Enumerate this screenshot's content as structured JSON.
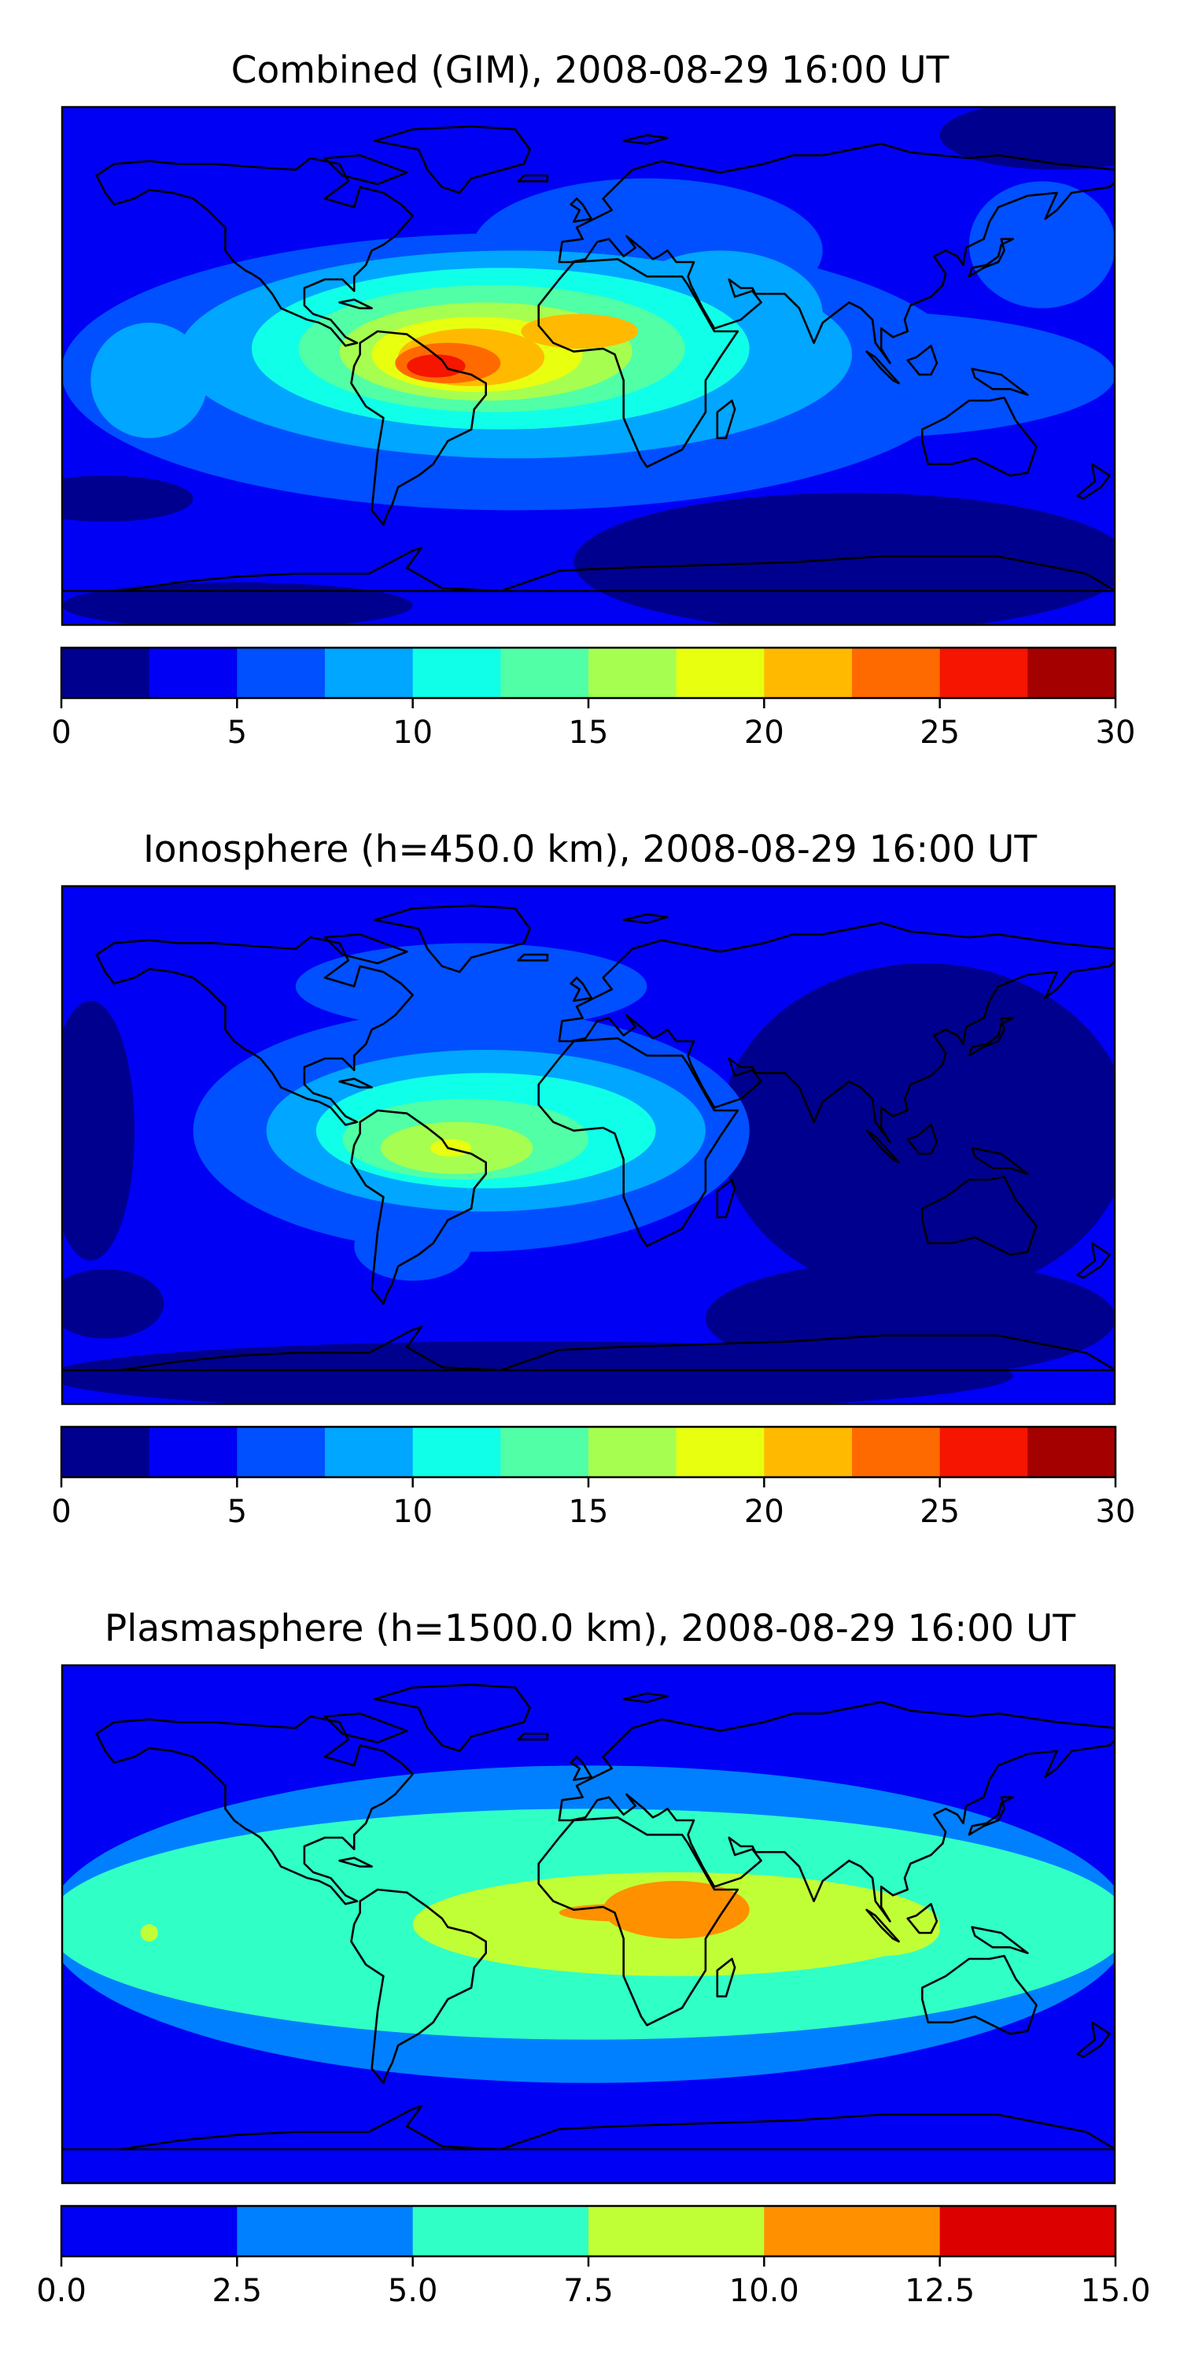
{
  "figure": {
    "panels": [
      {
        "title": "Combined (GIM), 2008-08-29 16:00 UT",
        "colorbar_ticks": [
          "0",
          "5",
          "10",
          "15",
          "20",
          "25",
          "30"
        ]
      },
      {
        "title": "Ionosphere  (h=450.0 km), 2008-08-29 16:00 UT",
        "colorbar_ticks": [
          "0",
          "5",
          "10",
          "15",
          "20",
          "25",
          "30"
        ]
      },
      {
        "title": "Plasmasphere (h=1500.0 km), 2008-08-29 16:00 UT",
        "colorbar_ticks": [
          "0.0",
          "2.5",
          "5.0",
          "7.5",
          "10.0",
          "12.5",
          "15.0"
        ]
      }
    ]
  },
  "chart_data": [
    {
      "type": "heatmap",
      "title": "Combined (GIM), 2008-08-29 16:00 UT",
      "map_projection": "plate-carree",
      "lon_range": [
        -180,
        180
      ],
      "lat_range": [
        -90,
        90
      ],
      "colorbar": {
        "orientation": "horizontal",
        "placement": "below",
        "range": [
          0,
          30
        ],
        "levels": [
          0,
          2.5,
          5,
          7.5,
          10,
          12.5,
          15,
          17.5,
          20,
          22.5,
          25,
          27.5,
          30
        ],
        "colors": [
          "#00008f",
          "#0000f5",
          "#0050ff",
          "#00a6ff",
          "#10ffe8",
          "#50ffa6",
          "#a6ff50",
          "#e8ff10",
          "#ffba00",
          "#ff6a00",
          "#f51500",
          "#a50000"
        ],
        "ticks": [
          0,
          5,
          10,
          15,
          20,
          25,
          30
        ]
      },
      "background_level": 1,
      "features": [
        {
          "level": 0,
          "lon": 160,
          "lat": 80,
          "rlon": 40,
          "rlat": 12
        },
        {
          "level": 0,
          "lon": -165,
          "lat": -46,
          "rlon": 30,
          "rlat": 8
        },
        {
          "level": 0,
          "lon": 90,
          "lat": -68,
          "rlon": 95,
          "rlat": 24
        },
        {
          "level": 0,
          "lon": -120,
          "lat": -83,
          "rlon": 60,
          "rlat": 8
        },
        {
          "level": 2,
          "lon": -25,
          "lat": -2,
          "rlon": 155,
          "rlat": 48
        },
        {
          "level": 2,
          "lon": 90,
          "lat": -3,
          "rlon": 90,
          "rlat": 22
        },
        {
          "level": 2,
          "lon": 20,
          "lat": 40,
          "rlon": 60,
          "rlat": 25
        },
        {
          "level": 2,
          "lon": 155,
          "lat": 42,
          "rlon": 25,
          "rlat": 22
        },
        {
          "level": 3,
          "lon": -25,
          "lat": 4,
          "rlon": 115,
          "rlat": 36
        },
        {
          "level": 3,
          "lon": 45,
          "lat": 18,
          "rlon": 35,
          "rlat": 22
        },
        {
          "level": 3,
          "lon": -150,
          "lat": -5,
          "rlon": 20,
          "rlat": 20
        },
        {
          "level": 4,
          "lon": -30,
          "lat": 6,
          "rlon": 85,
          "rlat": 28
        },
        {
          "level": 5,
          "lon": -33,
          "lat": 6,
          "rlon": 66,
          "rlat": 22
        },
        {
          "level": 6,
          "lon": -35,
          "lat": 5,
          "rlon": 50,
          "rlat": 17
        },
        {
          "level": 7,
          "lon": -38,
          "lat": 4,
          "rlon": 36,
          "rlat": 13
        },
        {
          "level": 8,
          "lon": -40,
          "lat": 3,
          "rlon": 25,
          "rlat": 10
        },
        {
          "level": 8,
          "lon": -3,
          "lat": 12,
          "rlon": 20,
          "rlat": 6
        },
        {
          "level": 9,
          "lon": -48,
          "lat": 1,
          "rlon": 18,
          "rlat": 7
        },
        {
          "level": 10,
          "lon": -52,
          "lat": 0,
          "rlon": 10,
          "rlat": 4
        }
      ]
    },
    {
      "type": "heatmap",
      "title": "Ionosphere  (h=450.0 km), 2008-08-29 16:00 UT",
      "map_projection": "plate-carree",
      "lon_range": [
        -180,
        180
      ],
      "lat_range": [
        -90,
        90
      ],
      "colorbar": {
        "orientation": "horizontal",
        "placement": "below",
        "range": [
          0,
          30
        ],
        "levels": [
          0,
          2.5,
          5,
          7.5,
          10,
          12.5,
          15,
          17.5,
          20,
          22.5,
          25,
          27.5,
          30
        ],
        "colors": [
          "#00008f",
          "#0000f5",
          "#0050ff",
          "#00a6ff",
          "#10ffe8",
          "#50ffa6",
          "#a6ff50",
          "#e8ff10",
          "#ffba00",
          "#ff6a00",
          "#f51500",
          "#a50000"
        ],
        "ticks": [
          0,
          5,
          10,
          15,
          20,
          25,
          30
        ]
      },
      "background_level": 1,
      "features": [
        {
          "level": 0,
          "lon": 115,
          "lat": 5,
          "rlon": 70,
          "rlat": 58
        },
        {
          "level": 0,
          "lon": -170,
          "lat": 5,
          "rlon": 15,
          "rlat": 45
        },
        {
          "level": 0,
          "lon": -20,
          "lat": -80,
          "rlon": 165,
          "rlat": 12
        },
        {
          "level": 0,
          "lon": 110,
          "lat": -60,
          "rlon": 70,
          "rlat": 20
        },
        {
          "level": 0,
          "lon": -165,
          "lat": -55,
          "rlon": 20,
          "rlat": 12
        },
        {
          "level": 2,
          "lon": -40,
          "lat": 5,
          "rlon": 95,
          "rlat": 42
        },
        {
          "level": 2,
          "lon": -40,
          "lat": 55,
          "rlon": 60,
          "rlat": 15
        },
        {
          "level": 2,
          "lon": -60,
          "lat": -35,
          "rlon": 20,
          "rlat": 12
        },
        {
          "level": 3,
          "lon": -35,
          "lat": 5,
          "rlon": 75,
          "rlat": 28
        },
        {
          "level": 4,
          "lon": -35,
          "lat": 5,
          "rlon": 58,
          "rlat": 20
        },
        {
          "level": 5,
          "lon": -42,
          "lat": 2,
          "rlon": 42,
          "rlat": 14
        },
        {
          "level": 6,
          "lon": -45,
          "lat": -1,
          "rlon": 26,
          "rlat": 9
        },
        {
          "level": 7,
          "lon": -47,
          "lat": -1,
          "rlon": 7,
          "rlat": 3
        }
      ]
    },
    {
      "type": "heatmap",
      "title": "Plasmasphere (h=1500.0 km), 2008-08-29 16:00 UT",
      "map_projection": "plate-carree",
      "lon_range": [
        -180,
        180
      ],
      "lat_range": [
        -90,
        90
      ],
      "colorbar": {
        "orientation": "horizontal",
        "placement": "below",
        "range": [
          0,
          15
        ],
        "levels": [
          0,
          2.5,
          5,
          7.5,
          10,
          12.5,
          15
        ],
        "colors": [
          "#0000f5",
          "#0080ff",
          "#30ffc6",
          "#c0ff36",
          "#ff9000",
          "#dc0000"
        ],
        "ticks": [
          0,
          2.5,
          5,
          7.5,
          10,
          12.5,
          15
        ]
      },
      "background_level": 0,
      "features": [
        {
          "level": 1,
          "lon": 0,
          "lat": 0,
          "rlon": 185,
          "rlat": 55
        },
        {
          "level": 2,
          "lon": 0,
          "lat": 0,
          "rlon": 185,
          "rlat": 40
        },
        {
          "level": 3,
          "lon": 30,
          "lat": 0,
          "rlon": 90,
          "rlat": 18
        },
        {
          "level": 3,
          "lon": 100,
          "lat": -2,
          "rlon": 20,
          "rlat": 9
        },
        {
          "level": 3,
          "lon": -150,
          "lat": -3,
          "rlon": 3,
          "rlat": 3
        },
        {
          "level": 4,
          "lon": 30,
          "lat": 5,
          "rlon": 25,
          "rlat": 10
        },
        {
          "level": 4,
          "lon": 10,
          "lat": 4,
          "rlon": 20,
          "rlat": 3
        }
      ]
    }
  ]
}
